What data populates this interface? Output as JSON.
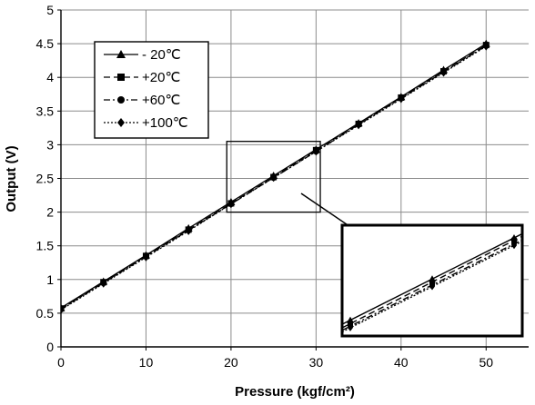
{
  "chart_data": {
    "type": "line",
    "title": "",
    "xlabel": "Pressure (kgf/cm²)",
    "ylabel": "Output (V)",
    "xlim": [
      0,
      55
    ],
    "ylim": [
      0,
      5
    ],
    "xticks": [
      0,
      10,
      20,
      30,
      40,
      50
    ],
    "xtick_labels": [
      "0",
      "10",
      "20",
      "30",
      "40",
      "50"
    ],
    "yticks": [
      0,
      0.5,
      1,
      1.5,
      2,
      2.5,
      3,
      3.5,
      4,
      4.5,
      5
    ],
    "ytick_labels": [
      "0",
      "0.5",
      "1",
      "1.5",
      "2",
      "2.5",
      "3",
      "3.5",
      "4",
      "4.5",
      "5"
    ],
    "grid": true,
    "legend_position": "top-left",
    "x": [
      0,
      5,
      10,
      15,
      20,
      25,
      30,
      35,
      40,
      45,
      50
    ],
    "series": [
      {
        "name": "- 20℃",
        "marker": "triangle",
        "dash": "solid",
        "values": [
          0.58,
          0.97,
          1.36,
          1.76,
          2.15,
          2.54,
          2.93,
          3.32,
          3.71,
          4.11,
          4.5
        ]
      },
      {
        "name": "+20℃",
        "marker": "square",
        "dash": "dashed",
        "values": [
          0.57,
          0.96,
          1.35,
          1.74,
          2.13,
          2.52,
          2.92,
          3.31,
          3.7,
          4.09,
          4.48
        ]
      },
      {
        "name": "+60℃",
        "marker": "circle",
        "dash": "dashdot",
        "values": [
          0.56,
          0.95,
          1.34,
          1.73,
          2.12,
          2.51,
          2.9,
          3.3,
          3.69,
          4.08,
          4.47
        ]
      },
      {
        "name": "+100℃",
        "marker": "diamond",
        "dash": "dotted",
        "values": [
          0.55,
          0.94,
          1.33,
          1.72,
          2.12,
          2.51,
          2.9,
          3.29,
          3.68,
          4.07,
          4.46
        ]
      }
    ],
    "zoom_region": {
      "xlim": [
        19.5,
        30.5
      ],
      "ylim": [
        2.0,
        3.05
      ]
    }
  }
}
